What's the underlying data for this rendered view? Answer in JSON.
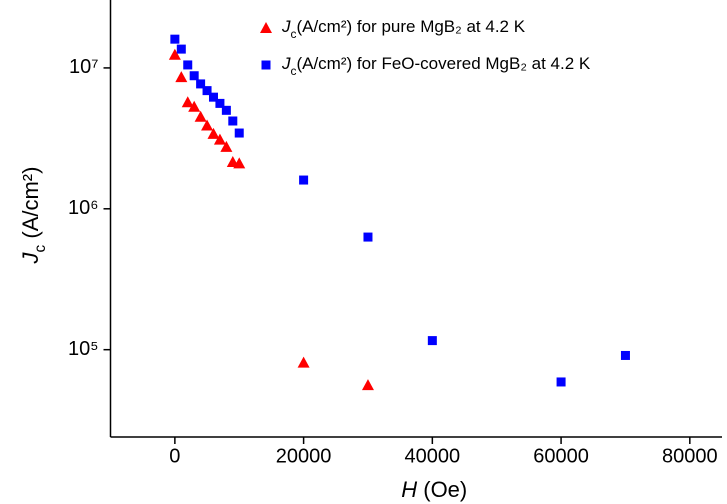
{
  "chart_data": {
    "type": "scatter",
    "x_label": "H (Oe)",
    "y_label": "Jc (A/cm²)",
    "log_y": true,
    "xlim": [
      -10000,
      85000
    ],
    "ylim": [
      24000,
      30000000
    ],
    "xticks": [
      0,
      20000,
      40000,
      60000,
      80000
    ],
    "yticks": [
      {
        "value": 100000,
        "label": "10⁵"
      },
      {
        "value": 1000000,
        "label": "10⁶"
      },
      {
        "value": 10000000,
        "label": "10⁷"
      }
    ],
    "series": [
      {
        "name": "Jc(A/cm²) for pure MgB₂ at 4.2 K",
        "color": "#ff0000",
        "marker": "triangle",
        "x": [
          0,
          1000,
          2000,
          3000,
          4000,
          5000,
          6000,
          7000,
          8000,
          9000,
          10000,
          20000,
          30000
        ],
        "values": [
          12400000,
          8600000,
          5700000,
          5300000,
          4500000,
          3900000,
          3400000,
          3100000,
          2750000,
          2150000,
          2100000,
          81000,
          56000
        ]
      },
      {
        "name": "Jc(A/cm²) for FeO-covered MgB₂ at 4.2 K",
        "color": "#0000ff",
        "marker": "square",
        "x": [
          0,
          1000,
          2000,
          3000,
          4000,
          5000,
          6000,
          7000,
          8000,
          9000,
          10000,
          20000,
          30000,
          40000,
          60000,
          70000
        ],
        "values": [
          16000000,
          13600000,
          10500000,
          8800000,
          7700000,
          6900000,
          6200000,
          5600000,
          5000000,
          4200000,
          3450000,
          1600000,
          630000,
          116000,
          59000,
          91000
        ]
      }
    ]
  }
}
